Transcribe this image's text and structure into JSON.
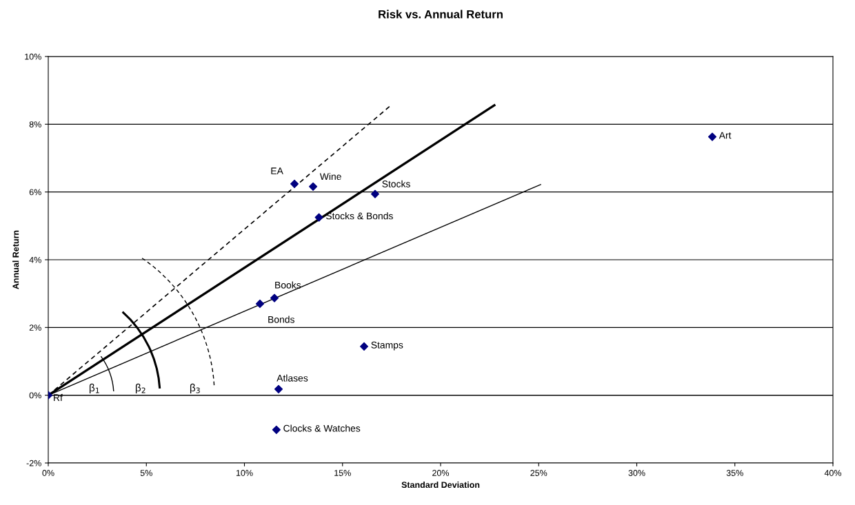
{
  "chart_data": {
    "type": "scatter",
    "title": "Risk vs. Annual Return",
    "xlabel": "Standard Deviation",
    "ylabel": "Annual Return",
    "series": [
      {
        "color": "#000080",
        "marker": "diamond",
        "x": [
          0,
          12.55,
          13.5,
          16.66,
          13.8,
          11.53,
          10.79,
          16.1,
          11.74,
          11.63,
          33.85
        ],
        "values": [
          0,
          6.24,
          6.16,
          5.94,
          5.25,
          2.87,
          2.7,
          1.44,
          0.18,
          -1.02,
          7.63
        ]
      },
      {
        "type": "line",
        "color": "#000000",
        "line_style": "dashed",
        "x": [
          0,
          17.47
        ],
        "values": [
          0,
          8.56
        ]
      },
      {
        "type": "line",
        "color": "#000000",
        "line_style": "solid",
        "x": [
          0,
          22.74
        ],
        "values": [
          0,
          8.56
        ]
      },
      {
        "type": "line",
        "color": "#000000",
        "line_style": "solid",
        "x": [
          0,
          25.1
        ],
        "values": [
          0,
          6.22
        ]
      }
    ],
    "annotations": [
      {
        "text": "Rf",
        "x": 0,
        "y": 0
      },
      {
        "text": "EA",
        "x": 12.55,
        "y": 6.24
      },
      {
        "text": "Wine",
        "x": 13.5,
        "y": 6.16
      },
      {
        "text": "Stocks",
        "x": 16.66,
        "y": 5.94
      },
      {
        "text": "Stocks & Bonds",
        "x": 13.8,
        "y": 5.25
      },
      {
        "text": "Books",
        "x": 11.53,
        "y": 2.87
      },
      {
        "text": "Bonds",
        "x": 10.79,
        "y": 2.7
      },
      {
        "text": "Stamps",
        "x": 16.1,
        "y": 1.44
      },
      {
        "text": "Atlases",
        "x": 11.74,
        "y": 0.18
      },
      {
        "text": "Clocks & Watches",
        "x": 11.63,
        "y": -1.02
      },
      {
        "text": "Art",
        "x": 33.85,
        "y": 7.63
      },
      "β$_{1}$",
      "β$_{2}$",
      "β$_{3}$"
    ],
    "xlim": [
      0,
      40
    ],
    "ylim": [
      -2,
      10
    ],
    "xticks": [
      {
        "value": 0,
        "label": "0%"
      },
      {
        "value": 5,
        "label": "5%"
      },
      {
        "value": 10,
        "label": "10%"
      },
      {
        "value": 15,
        "label": "15%"
      },
      {
        "value": 20,
        "label": "20%"
      },
      {
        "value": 25,
        "label": "25%"
      },
      {
        "value": 30,
        "label": "30%"
      },
      {
        "value": 35,
        "label": "35%"
      },
      {
        "value": 40,
        "label": "40%"
      }
    ],
    "yticks": [
      {
        "value": -2,
        "label": "-2%"
      },
      {
        "value": 0,
        "label": "0%"
      },
      {
        "value": 2,
        "label": "2%"
      },
      {
        "value": 4,
        "label": "4%"
      },
      {
        "value": 6,
        "label": "6%"
      },
      {
        "value": 8,
        "label": "8%"
      },
      {
        "value": 10,
        "label": "10%"
      }
    ],
    "grid": "y",
    "legend": false
  }
}
